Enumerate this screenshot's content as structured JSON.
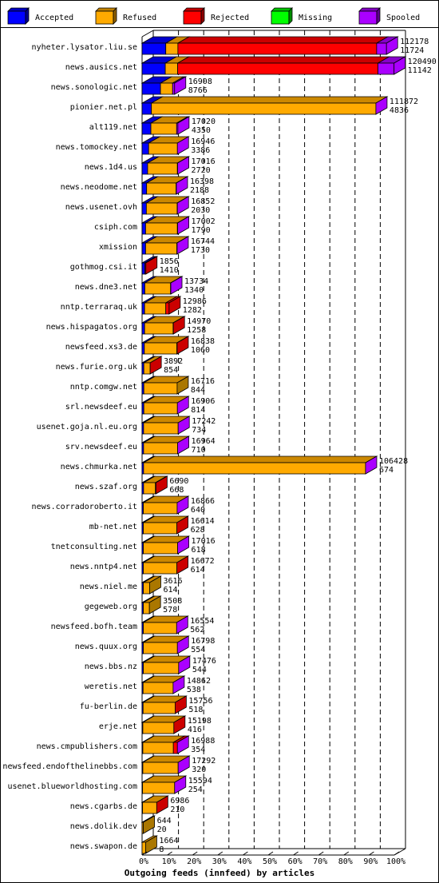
{
  "chart_data": {
    "type": "bar",
    "orientation": "horizontal",
    "stacked": true,
    "xlabel": "Outgoing feeds (innfeed) by articles",
    "ticks": [
      "0%",
      "10%",
      "20%",
      "30%",
      "40%",
      "50%",
      "60%",
      "70%",
      "80%",
      "90%",
      "100%"
    ],
    "xlim": [
      0,
      100
    ],
    "legend_position": "top",
    "legend": [
      {
        "name": "Accepted",
        "color": "#0000ff"
      },
      {
        "name": "Refused",
        "color": "#ffaa00"
      },
      {
        "name": "Rejected",
        "color": "#ff0000"
      },
      {
        "name": "Missing",
        "color": "#00ff00"
      },
      {
        "name": "Spooled",
        "color": "#aa00ff"
      }
    ],
    "bars": [
      {
        "host": "nyheter.lysator.liu.se",
        "total": "112178",
        "accepted_count": "11724",
        "segments": [
          9.4,
          4.8,
          78.8,
          0,
          3.9
        ]
      },
      {
        "host": "news.ausics.net",
        "total": "120490",
        "accepted_count": "11142",
        "segments": [
          9.2,
          4.9,
          79.4,
          0,
          6.4
        ]
      },
      {
        "host": "news.sonologic.net",
        "total": "16908",
        "accepted_count": "8766",
        "segments": [
          7.3,
          4.8,
          0,
          0,
          0.8
        ]
      },
      {
        "host": "pionier.net.pl",
        "total": "111872",
        "accepted_count": "4836",
        "segments": [
          3.7,
          89.0,
          0,
          0,
          0
        ]
      },
      {
        "host": "alt119.net",
        "total": "17020",
        "accepted_count": "4350",
        "segments": [
          3.5,
          10.2,
          0,
          0,
          0.5
        ]
      },
      {
        "host": "news.tomockey.net",
        "total": "16946",
        "accepted_count": "3386",
        "segments": [
          2.6,
          11.4,
          0,
          0,
          0
        ]
      },
      {
        "host": "news.1d4.us",
        "total": "17016",
        "accepted_count": "2720",
        "segments": [
          2.2,
          11.8,
          0,
          0,
          0.1
        ]
      },
      {
        "host": "news.neodome.net",
        "total": "16398",
        "accepted_count": "2188",
        "segments": [
          1.8,
          11.7,
          0,
          0,
          0.1
        ]
      },
      {
        "host": "news.usenet.ovh",
        "total": "16852",
        "accepted_count": "2030",
        "segments": [
          1.7,
          12.2,
          0,
          0,
          0.1
        ]
      },
      {
        "host": "csiph.com",
        "total": "17002",
        "accepted_count": "1790",
        "segments": [
          1.4,
          12.6,
          0,
          0,
          0.1
        ]
      },
      {
        "host": "xmission",
        "total": "16744",
        "accepted_count": "1730",
        "segments": [
          1.4,
          12.4,
          0,
          0,
          0.1
        ]
      },
      {
        "host": "gothmog.csi.it",
        "total": "1856",
        "accepted_count": "1410",
        "segments": [
          1.1,
          0,
          0.4,
          0,
          0
        ]
      },
      {
        "host": "news.dne3.net",
        "total": "13734",
        "accepted_count": "1340",
        "segments": [
          1.1,
          10.2,
          0,
          0,
          0.1
        ]
      },
      {
        "host": "nntp.terraraq.uk",
        "total": "12986",
        "accepted_count": "1282",
        "segments": [
          1.0,
          8.4,
          1.3,
          0,
          0
        ]
      },
      {
        "host": "news.hispagatos.org",
        "total": "14970",
        "accepted_count": "1258",
        "segments": [
          1.0,
          11.3,
          0.1,
          0,
          0
        ]
      },
      {
        "host": "newsfeed.xs3.de",
        "total": "16838",
        "accepted_count": "1060",
        "segments": [
          0.9,
          12.9,
          0.1,
          0,
          0
        ]
      },
      {
        "host": "news.furie.org.uk",
        "total": "3892",
        "accepted_count": "854",
        "segments": [
          0.7,
          2.5,
          0,
          0,
          0
        ]
      },
      {
        "host": "nntp.comgw.net",
        "total": "16716",
        "accepted_count": "844",
        "segments": [
          0.7,
          13.2,
          0,
          0,
          0
        ]
      },
      {
        "host": "srl.newsdeef.eu",
        "total": "16906",
        "accepted_count": "814",
        "segments": [
          0.7,
          13.3,
          0,
          0,
          0
        ]
      },
      {
        "host": "usenet.goja.nl.eu.org",
        "total": "17242",
        "accepted_count": "734",
        "segments": [
          0.6,
          13.7,
          0,
          0,
          0
        ]
      },
      {
        "host": "srv.newsdeef.eu",
        "total": "16964",
        "accepted_count": "710",
        "segments": [
          0.6,
          13.5,
          0,
          0,
          0
        ]
      },
      {
        "host": "news.chmurka.net",
        "total": "106428",
        "accepted_count": "674",
        "segments": [
          0.6,
          88.0,
          0,
          0,
          0
        ]
      },
      {
        "host": "news.szaf.org",
        "total": "6690",
        "accepted_count": "668",
        "segments": [
          0.6,
          4.7,
          0.2,
          0,
          0
        ]
      },
      {
        "host": "news.corradoroberto.it",
        "total": "16866",
        "accepted_count": "640",
        "segments": [
          0.5,
          13.4,
          0,
          0,
          0
        ]
      },
      {
        "host": "mb-net.net",
        "total": "16614",
        "accepted_count": "628",
        "segments": [
          0.5,
          13.3,
          0,
          0,
          0
        ]
      },
      {
        "host": "tnetconsulting.net",
        "total": "17016",
        "accepted_count": "618",
        "segments": [
          0.5,
          13.6,
          0,
          0,
          0
        ]
      },
      {
        "host": "news.nntp4.net",
        "total": "16672",
        "accepted_count": "614",
        "segments": [
          0.5,
          13.3,
          0,
          0,
          0
        ]
      },
      {
        "host": "news.niel.me",
        "total": "3616",
        "accepted_count": "614",
        "segments": [
          0.5,
          2.5,
          0,
          0,
          0
        ]
      },
      {
        "host": "gegeweb.org",
        "total": "3508",
        "accepted_count": "578",
        "segments": [
          0.5,
          2.4,
          0,
          0,
          0
        ]
      },
      {
        "host": "newsfeed.bofh.team",
        "total": "16554",
        "accepted_count": "562",
        "segments": [
          0.5,
          13.2,
          0,
          0,
          0
        ]
      },
      {
        "host": "news.quux.org",
        "total": "16798",
        "accepted_count": "554",
        "segments": [
          0.5,
          13.5,
          0,
          0,
          0
        ]
      },
      {
        "host": "news.bbs.nz",
        "total": "17476",
        "accepted_count": "544",
        "segments": [
          0.5,
          14.0,
          0,
          0,
          0
        ]
      },
      {
        "host": "weretis.net",
        "total": "14862",
        "accepted_count": "538",
        "segments": [
          0.4,
          11.9,
          0,
          0,
          0
        ]
      },
      {
        "host": "fu-berlin.de",
        "total": "15756",
        "accepted_count": "518",
        "segments": [
          0.4,
          12.7,
          0,
          0,
          0
        ]
      },
      {
        "host": "erje.net",
        "total": "15198",
        "accepted_count": "416",
        "segments": [
          0.3,
          12.3,
          0,
          0,
          0
        ]
      },
      {
        "host": "news.cmpublishers.com",
        "total": "16988",
        "accepted_count": "354",
        "segments": [
          0.3,
          12.1,
          1.6,
          0,
          0
        ]
      },
      {
        "host": "newsfeed.endofthelinebbs.com",
        "total": "17292",
        "accepted_count": "320",
        "segments": [
          0.3,
          14.0,
          0,
          0,
          0
        ]
      },
      {
        "host": "usenet.blueworldhosting.com",
        "total": "15594",
        "accepted_count": "254",
        "segments": [
          0.2,
          12.7,
          0,
          0,
          0
        ]
      },
      {
        "host": "news.cgarbs.de",
        "total": "6986",
        "accepted_count": "210",
        "segments": [
          0.2,
          5.6,
          0,
          0,
          0
        ]
      },
      {
        "host": "news.dolik.dev",
        "total": "644",
        "accepted_count": "20",
        "segments": [
          0,
          0.5,
          0,
          0,
          0
        ]
      },
      {
        "host": "news.swapon.de",
        "total": "1664",
        "accepted_count": "8",
        "segments": [
          0,
          1.4,
          0,
          0,
          0
        ]
      }
    ],
    "cap_colors": [
      "#aa00ff",
      "#aa00ff",
      "#aa00ff",
      "#aa00ff",
      "#aa00ff",
      "#aa00ff",
      "#aa00ff",
      "#aa00ff",
      "#aa00ff",
      "#aa00ff",
      "#aa00ff",
      "#cc0000",
      "#aa00ff",
      "#cc0000",
      "#cc0000",
      "#cc0000",
      "#cc0000",
      "#aa7700",
      "#aa00ff",
      "#aa00ff",
      "#aa00ff",
      "#aa00ff",
      "#cc0000",
      "#aa00ff",
      "#cc0000",
      "#aa00ff",
      "#cc0000",
      "#aa7700",
      "#aa7700",
      "#aa00ff",
      "#aa00ff",
      "#aa00ff",
      "#aa00ff",
      "#cc0000",
      "#cc0000",
      "#aa00ff",
      "#aa00ff",
      "#aa00ff",
      "#cc0000",
      "#aa7700",
      "#aa7700"
    ]
  }
}
